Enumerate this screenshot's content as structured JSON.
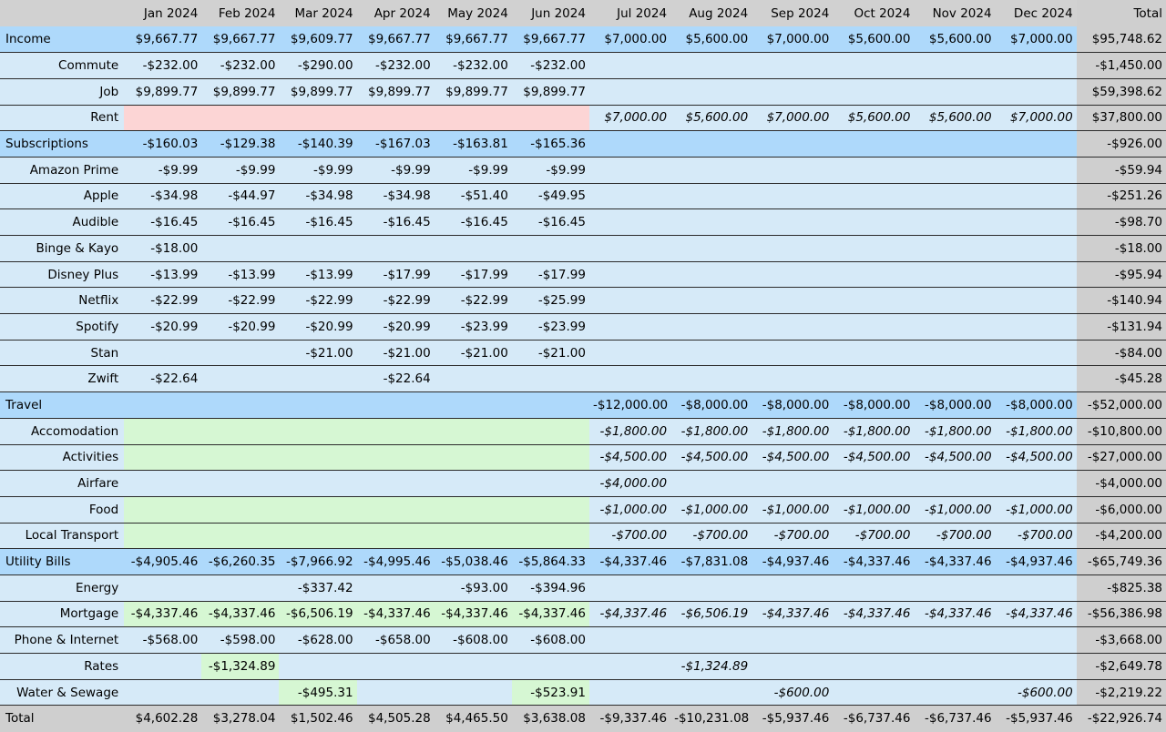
{
  "header": {
    "months": [
      "Jan 2024",
      "Feb 2024",
      "Mar 2024",
      "Apr 2024",
      "May 2024",
      "Jun 2024",
      "Jul 2024",
      "Aug 2024",
      "Sep 2024",
      "Oct 2024",
      "Nov 2024",
      "Dec 2024"
    ],
    "total": "Total"
  },
  "colors": {
    "category_row": "#aed9fb",
    "item_row": "#d6eaf8",
    "total_column": "#cfcfcf",
    "missing_rent": "#fcd5d5",
    "highlight_green": "#d6f7d3"
  },
  "rows": [
    {
      "label": "Income",
      "type": "cat",
      "cells": [
        "$9,667.77",
        "$9,667.77",
        "$9,609.77",
        "$9,667.77",
        "$9,667.77",
        "$9,667.77",
        "$7,000.00",
        "$5,600.00",
        "$7,000.00",
        "$5,600.00",
        "$5,600.00",
        "$7,000.00"
      ],
      "total": "$95,748.62"
    },
    {
      "label": "Commute",
      "type": "item",
      "cells": [
        "-$232.00",
        "-$232.00",
        "-$290.00",
        "-$232.00",
        "-$232.00",
        "-$232.00",
        "",
        "",
        "",
        "",
        "",
        ""
      ],
      "total": "-$1,450.00"
    },
    {
      "label": "Job",
      "type": "item",
      "cells": [
        "$9,899.77",
        "$9,899.77",
        "$9,899.77",
        "$9,899.77",
        "$9,899.77",
        "$9,899.77",
        "",
        "",
        "",
        "",
        "",
        ""
      ],
      "total": "$59,398.62"
    },
    {
      "label": "Rent",
      "type": "item",
      "cells": [
        "",
        "",
        "",
        "",
        "",
        "",
        "$7,000.00",
        "$5,600.00",
        "$7,000.00",
        "$5,600.00",
        "$5,600.00",
        "$7,000.00"
      ],
      "total": "$37,800.00",
      "pink": [
        0,
        1,
        2,
        3,
        4,
        5
      ],
      "proj": [
        6,
        7,
        8,
        9,
        10,
        11
      ]
    },
    {
      "label": "Subscriptions",
      "type": "cat",
      "cells": [
        "-$160.03",
        "-$129.38",
        "-$140.39",
        "-$167.03",
        "-$163.81",
        "-$165.36",
        "",
        "",
        "",
        "",
        "",
        ""
      ],
      "total": "-$926.00"
    },
    {
      "label": "Amazon Prime",
      "type": "item",
      "cells": [
        "-$9.99",
        "-$9.99",
        "-$9.99",
        "-$9.99",
        "-$9.99",
        "-$9.99",
        "",
        "",
        "",
        "",
        "",
        ""
      ],
      "total": "-$59.94"
    },
    {
      "label": "Apple",
      "type": "item",
      "cells": [
        "-$34.98",
        "-$44.97",
        "-$34.98",
        "-$34.98",
        "-$51.40",
        "-$49.95",
        "",
        "",
        "",
        "",
        "",
        ""
      ],
      "total": "-$251.26"
    },
    {
      "label": "Audible",
      "type": "item",
      "cells": [
        "-$16.45",
        "-$16.45",
        "-$16.45",
        "-$16.45",
        "-$16.45",
        "-$16.45",
        "",
        "",
        "",
        "",
        "",
        ""
      ],
      "total": "-$98.70"
    },
    {
      "label": "Binge & Kayo",
      "type": "item",
      "cells": [
        "-$18.00",
        "",
        "",
        "",
        "",
        "",
        "",
        "",
        "",
        "",
        "",
        ""
      ],
      "total": "-$18.00"
    },
    {
      "label": "Disney Plus",
      "type": "item",
      "cells": [
        "-$13.99",
        "-$13.99",
        "-$13.99",
        "-$17.99",
        "-$17.99",
        "-$17.99",
        "",
        "",
        "",
        "",
        "",
        ""
      ],
      "total": "-$95.94"
    },
    {
      "label": "Netflix",
      "type": "item",
      "cells": [
        "-$22.99",
        "-$22.99",
        "-$22.99",
        "-$22.99",
        "-$22.99",
        "-$25.99",
        "",
        "",
        "",
        "",
        "",
        ""
      ],
      "total": "-$140.94"
    },
    {
      "label": "Spotify",
      "type": "item",
      "cells": [
        "-$20.99",
        "-$20.99",
        "-$20.99",
        "-$20.99",
        "-$23.99",
        "-$23.99",
        "",
        "",
        "",
        "",
        "",
        ""
      ],
      "total": "-$131.94"
    },
    {
      "label": "Stan",
      "type": "item",
      "cells": [
        "",
        "",
        "-$21.00",
        "-$21.00",
        "-$21.00",
        "-$21.00",
        "",
        "",
        "",
        "",
        "",
        ""
      ],
      "total": "-$84.00"
    },
    {
      "label": "Zwift",
      "type": "item",
      "cells": [
        "-$22.64",
        "",
        "",
        "-$22.64",
        "",
        "",
        "",
        "",
        "",
        "",
        "",
        ""
      ],
      "total": "-$45.28"
    },
    {
      "label": "Travel",
      "type": "cat",
      "cells": [
        "",
        "",
        "",
        "",
        "",
        "",
        "-$12,000.00",
        "-$8,000.00",
        "-$8,000.00",
        "-$8,000.00",
        "-$8,000.00",
        "-$8,000.00"
      ],
      "total": "-$52,000.00"
    },
    {
      "label": "Accomodation",
      "type": "item",
      "cells": [
        "",
        "",
        "",
        "",
        "",
        "",
        "-$1,800.00",
        "-$1,800.00",
        "-$1,800.00",
        "-$1,800.00",
        "-$1,800.00",
        "-$1,800.00"
      ],
      "total": "-$10,800.00",
      "green": [
        0,
        1,
        2,
        3,
        4,
        5
      ],
      "proj": [
        6,
        7,
        8,
        9,
        10,
        11
      ]
    },
    {
      "label": "Activities",
      "type": "item",
      "cells": [
        "",
        "",
        "",
        "",
        "",
        "",
        "-$4,500.00",
        "-$4,500.00",
        "-$4,500.00",
        "-$4,500.00",
        "-$4,500.00",
        "-$4,500.00"
      ],
      "total": "-$27,000.00",
      "green": [
        0,
        1,
        2,
        3,
        4,
        5
      ],
      "proj": [
        6,
        7,
        8,
        9,
        10,
        11
      ]
    },
    {
      "label": "Airfare",
      "type": "item",
      "cells": [
        "",
        "",
        "",
        "",
        "",
        "",
        "-$4,000.00",
        "",
        "",
        "",
        "",
        ""
      ],
      "total": "-$4,000.00",
      "proj": [
        6
      ]
    },
    {
      "label": "Food",
      "type": "item",
      "cells": [
        "",
        "",
        "",
        "",
        "",
        "",
        "-$1,000.00",
        "-$1,000.00",
        "-$1,000.00",
        "-$1,000.00",
        "-$1,000.00",
        "-$1,000.00"
      ],
      "total": "-$6,000.00",
      "green": [
        0,
        1,
        2,
        3,
        4,
        5
      ],
      "proj": [
        6,
        7,
        8,
        9,
        10,
        11
      ]
    },
    {
      "label": "Local Transport",
      "type": "item",
      "cells": [
        "",
        "",
        "",
        "",
        "",
        "",
        "-$700.00",
        "-$700.00",
        "-$700.00",
        "-$700.00",
        "-$700.00",
        "-$700.00"
      ],
      "total": "-$4,200.00",
      "green": [
        0,
        1,
        2,
        3,
        4,
        5
      ],
      "proj": [
        6,
        7,
        8,
        9,
        10,
        11
      ]
    },
    {
      "label": "Utility Bills",
      "type": "cat",
      "cells": [
        "-$4,905.46",
        "-$6,260.35",
        "-$7,966.92",
        "-$4,995.46",
        "-$5,038.46",
        "-$5,864.33",
        "-$4,337.46",
        "-$7,831.08",
        "-$4,937.46",
        "-$4,337.46",
        "-$4,337.46",
        "-$4,937.46"
      ],
      "total": "-$65,749.36"
    },
    {
      "label": "Energy",
      "type": "item",
      "cells": [
        "",
        "",
        "-$337.42",
        "",
        "-$93.00",
        "-$394.96",
        "",
        "",
        "",
        "",
        "",
        ""
      ],
      "total": "-$825.38"
    },
    {
      "label": "Mortgage",
      "type": "item",
      "cells": [
        "-$4,337.46",
        "-$4,337.46",
        "-$6,506.19",
        "-$4,337.46",
        "-$4,337.46",
        "-$4,337.46",
        "-$4,337.46",
        "-$6,506.19",
        "-$4,337.46",
        "-$4,337.46",
        "-$4,337.46",
        "-$4,337.46"
      ],
      "total": "-$56,386.98",
      "green": [
        0,
        1,
        2,
        3,
        4,
        5
      ],
      "proj": [
        6,
        7,
        8,
        9,
        10,
        11
      ]
    },
    {
      "label": "Phone & Internet",
      "type": "item",
      "cells": [
        "-$568.00",
        "-$598.00",
        "-$628.00",
        "-$658.00",
        "-$608.00",
        "-$608.00",
        "",
        "",
        "",
        "",
        "",
        ""
      ],
      "total": "-$3,668.00"
    },
    {
      "label": "Rates",
      "type": "item",
      "cells": [
        "",
        "-$1,324.89",
        "",
        "",
        "",
        "",
        "",
        "-$1,324.89",
        "",
        "",
        "",
        ""
      ],
      "total": "-$2,649.78",
      "green": [
        1
      ],
      "proj": [
        7
      ]
    },
    {
      "label": "Water & Sewage",
      "type": "item",
      "cells": [
        "",
        "",
        "-$495.31",
        "",
        "",
        "-$523.91",
        "",
        "",
        "-$600.00",
        "",
        "",
        "-$600.00"
      ],
      "total": "-$2,219.22",
      "green": [
        2,
        5
      ],
      "proj": [
        8,
        11
      ]
    }
  ],
  "grand_total": {
    "label": "Total",
    "cells": [
      "$4,602.28",
      "$3,278.04",
      "$1,502.46",
      "$4,505.28",
      "$4,465.50",
      "$3,638.08",
      "-$9,337.46",
      "-$10,231.08",
      "-$5,937.46",
      "-$6,737.46",
      "-$6,737.46",
      "-$5,937.46"
    ],
    "total": "-$22,926.74"
  }
}
